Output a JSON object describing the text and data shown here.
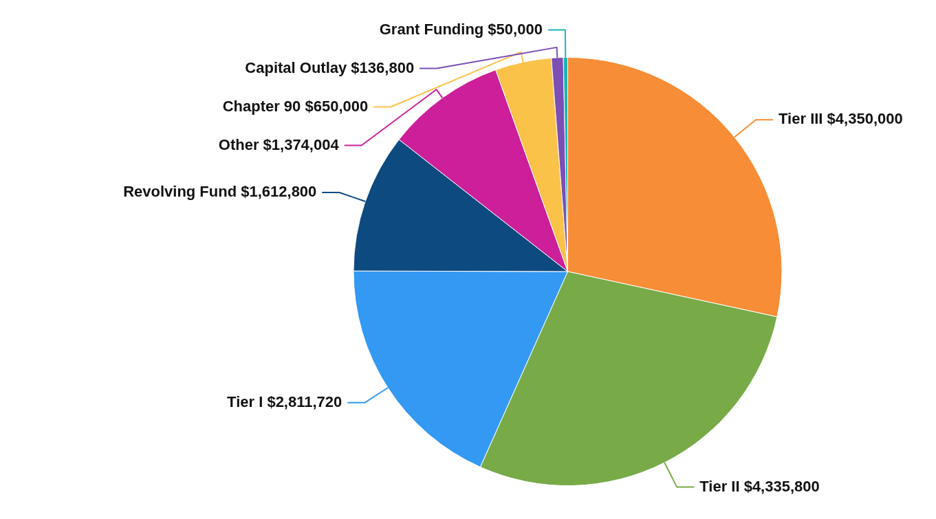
{
  "chart_data": {
    "type": "pie",
    "categories": [
      "Tier III",
      "Tier II",
      "Tier I",
      "Revolving Fund",
      "Other",
      "Chapter 90",
      "Capital Outlay",
      "Grant Funding"
    ],
    "values": [
      4350000,
      4335800,
      2811720,
      1612800,
      1374004,
      650000,
      136800,
      50000
    ],
    "value_labels": [
      "$4,350,000",
      "$4,335,800",
      "$2,811,720",
      "$1,612,800",
      "$1,374,004",
      "$650,000",
      "$136,800",
      "$50,000"
    ],
    "colors": [
      "#f78d36",
      "#78aa48",
      "#3399f3",
      "#0d4a80",
      "#cc1f99",
      "#fbc24a",
      "#7b4fb4",
      "#1ab5b5"
    ],
    "legend": false
  }
}
